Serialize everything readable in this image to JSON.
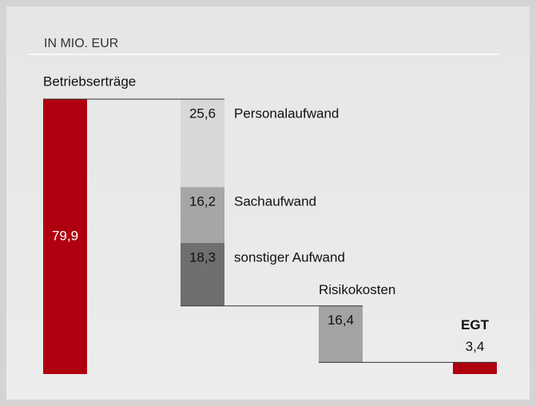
{
  "chart_data": {
    "type": "waterfall",
    "title": "IN MIO. EUR",
    "categories": [
      "Betriebserträge",
      "Personalaufwand",
      "Sachaufwand",
      "sonstiger Aufwand",
      "Risikokosten",
      "EGT"
    ],
    "values": [
      79.9,
      25.6,
      16.2,
      18.3,
      16.4,
      3.4
    ],
    "value_labels": [
      "79,9",
      "25,6",
      "16,2",
      "18,3",
      "16,4",
      "3,4"
    ],
    "colors": [
      "#b0000f",
      "#d8d8d8",
      "#a6a6a6",
      "#6f6f6f",
      "#a3a3a3",
      "#b0000f"
    ]
  }
}
